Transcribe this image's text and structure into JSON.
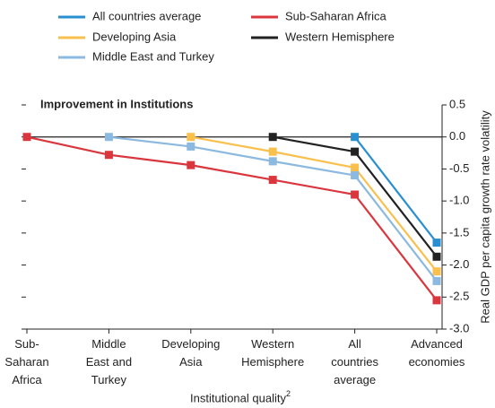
{
  "chart_data": {
    "type": "line",
    "annotation": "Improvement in Institutions",
    "x_label": "Institutional quality",
    "x_label_superscript": "2",
    "y_label": "Real GDP per capita growth rate volatility",
    "categories": [
      "Sub-\nSaharan\nAfrica",
      "Middle\nEast and\nTurkey",
      "Developing\nAsia",
      "Western\nHemisphere",
      "All\ncountries\naverage",
      "Advanced\neconomies"
    ],
    "series": [
      {
        "name": "All countries average",
        "color": "#2a8fd0",
        "values": [
          null,
          null,
          null,
          null,
          0,
          -1.65
        ]
      },
      {
        "name": "Sub-Saharan Africa",
        "color": "#d9363e",
        "values": [
          0,
          -0.28,
          -0.44,
          -0.67,
          -0.9,
          -2.55
        ]
      },
      {
        "name": "Developing Asia",
        "color": "#f9c04e",
        "values": [
          null,
          null,
          0,
          -0.23,
          -0.48,
          -2.1
        ]
      },
      {
        "name": "Western Hemisphere",
        "color": "#222222",
        "values": [
          null,
          null,
          null,
          0,
          -0.23,
          -1.87
        ]
      },
      {
        "name": "Middle East and Turkey",
        "color": "#8cb9e0",
        "values": [
          null,
          0,
          -0.15,
          -0.38,
          -0.6,
          -2.25
        ]
      }
    ],
    "ylim": [
      -3,
      0.5
    ],
    "yticks": [
      0.5,
      {
        "value": 0,
        "label": "0.0"
      },
      -0.5,
      {
        "value": -1,
        "label": "-1.0"
      },
      -1.5,
      {
        "value": -2,
        "label": "-2.0"
      },
      -2.5,
      {
        "value": -3,
        "label": "-3.0"
      }
    ],
    "y_axis_side": "right"
  }
}
